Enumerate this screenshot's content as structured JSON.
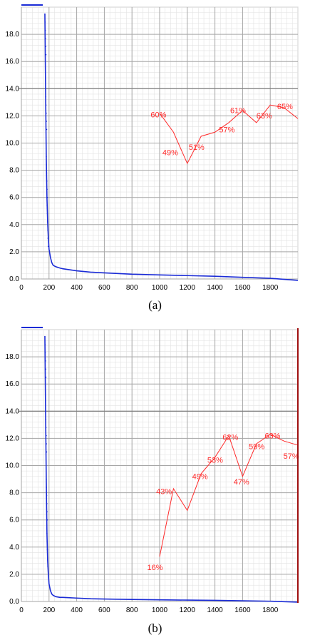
{
  "chart_data": [
    {
      "type": "line",
      "panel": "(a)",
      "x_ticks": [
        "0",
        "200",
        "400",
        "600",
        "800",
        "1000",
        "1200",
        "1400",
        "1600",
        "1800"
      ],
      "y_ticks": [
        "0.0",
        "2.0",
        "4.0",
        "6.0",
        "8.0",
        "10.0",
        "12.0",
        "14.0",
        "16.0",
        "18.0"
      ],
      "xlim": [
        0,
        2000
      ],
      "ylim": [
        0,
        20
      ],
      "grid": true,
      "colors": {
        "curve": "#1a2bd6",
        "annotation": "#ff2a2a",
        "grid_major": "#a6a6a6",
        "grid_minor": "#e2e2e2"
      },
      "series": [
        {
          "x": [
            170,
            175,
            180,
            185,
            190,
            195,
            200,
            210,
            220,
            230,
            250,
            280,
            300,
            400,
            500,
            600,
            800,
            1000,
            1200,
            1400,
            1600,
            1800,
            2000
          ],
          "y": [
            19.5,
            14,
            9,
            6,
            4.2,
            3,
            2.2,
            1.6,
            1.2,
            1.0,
            0.9,
            0.8,
            0.75,
            0.6,
            0.5,
            0.45,
            0.35,
            0.3,
            0.25,
            0.2,
            0.12,
            0.05,
            -0.1
          ]
        },
        {
          "x": [
            1000,
            1100,
            1200,
            1300,
            1400,
            1500,
            1600,
            1700,
            1800,
            1900,
            2000
          ],
          "y": [
            12.2,
            10.8,
            8.5,
            10.5,
            10.8,
            11.5,
            12.4,
            11.5,
            12.8,
            12.6,
            11.8
          ]
        }
      ],
      "annotations": [
        {
          "text": "60%",
          "x": 935,
          "y": 11.9
        },
        {
          "text": "49%",
          "x": 1020,
          "y": 9.1
        },
        {
          "text": "51%",
          "x": 1210,
          "y": 9.5
        },
        {
          "text": "57%",
          "x": 1430,
          "y": 10.8
        },
        {
          "text": "61%",
          "x": 1510,
          "y": 12.2
        },
        {
          "text": "63%",
          "x": 1700,
          "y": 11.8
        },
        {
          "text": "65%",
          "x": 1850,
          "y": 12.5
        }
      ]
    },
    {
      "type": "line",
      "panel": "(b)",
      "x_ticks": [
        "0",
        "200",
        "400",
        "600",
        "800",
        "1000",
        "1200",
        "1400",
        "1600",
        "1800"
      ],
      "y_ticks": [
        "0.0",
        "2.0",
        "4.0",
        "6.0",
        "8.0",
        "10.0",
        "12.0",
        "14.0",
        "16.0",
        "18.0"
      ],
      "xlim": [
        0,
        2000
      ],
      "ylim": [
        0,
        20
      ],
      "grid": true,
      "colors": {
        "curve": "#1a2bd6",
        "annotation": "#ff2a2a",
        "grid_major": "#a6a6a6",
        "grid_minor": "#e2e2e2",
        "right_border": "#a01010"
      },
      "series": [
        {
          "x": [
            170,
            175,
            180,
            185,
            190,
            195,
            200,
            210,
            220,
            230,
            250,
            280,
            300,
            400,
            500,
            600,
            800,
            1000,
            1200,
            1400,
            1600,
            1800,
            2000
          ],
          "y": [
            19.5,
            14,
            9,
            5,
            3,
            2,
            1.3,
            0.8,
            0.55,
            0.45,
            0.35,
            0.3,
            0.3,
            0.25,
            0.2,
            0.18,
            0.15,
            0.12,
            0.1,
            0.08,
            0.05,
            0.02,
            -0.05
          ]
        },
        {
          "x": [
            1000,
            1100,
            1200,
            1300,
            1400,
            1500,
            1600,
            1700,
            1800,
            1900,
            2000
          ],
          "y": [
            3.3,
            8.3,
            6.7,
            9.4,
            10.6,
            12.2,
            9.2,
            11.6,
            12.3,
            11.8,
            11.5
          ]
        }
      ],
      "annotations": [
        {
          "text": "16%",
          "x": 910,
          "y": 2.3
        },
        {
          "text": "43%",
          "x": 975,
          "y": 7.9
        },
        {
          "text": "49%",
          "x": 1235,
          "y": 9.0
        },
        {
          "text": "53%",
          "x": 1345,
          "y": 10.2
        },
        {
          "text": "62%",
          "x": 1455,
          "y": 11.9
        },
        {
          "text": "47%",
          "x": 1535,
          "y": 8.6
        },
        {
          "text": "59%",
          "x": 1645,
          "y": 11.2
        },
        {
          "text": "63%",
          "x": 1760,
          "y": 12.0
        },
        {
          "text": "57%",
          "x": 1895,
          "y": 10.5
        }
      ]
    }
  ],
  "panels": {
    "a": "(a)",
    "b": "(b)"
  }
}
